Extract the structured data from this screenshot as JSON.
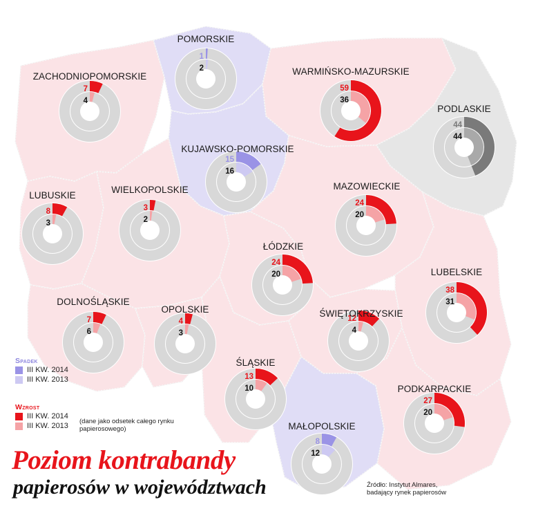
{
  "title": "Poziom kontrabandy",
  "subtitle": "papierosów w województwach",
  "note": "(dane jako odsetek całego rynku papierosowego)",
  "source": [
    "Źródło: Instytut Almares,",
    "badający rynek papierosów"
  ],
  "legend": {
    "decrease": {
      "title": "Spadek",
      "items": [
        {
          "label": "III KW. 2014",
          "color": "#9a93e6"
        },
        {
          "label": "III KW. 2013",
          "color": "#cdc9f2"
        }
      ]
    },
    "increase": {
      "title": "Wzrost",
      "items": [
        {
          "label": "III KW. 2014",
          "color": "#e8141b"
        },
        {
          "label": "III KW. 2013",
          "color": "#f5a3a6"
        }
      ]
    }
  },
  "colors": {
    "increase_2014": "#e8141b",
    "increase_2013": "#f5a3a6",
    "decrease_2014": "#9a93e6",
    "decrease_2013": "#cdc9f2",
    "same_2014": "#7a7a7a",
    "same_2013": "#a9a9a9",
    "ring": "#d8d8d8",
    "region_increase": "#fbe3e6",
    "region_decrease": "#e0ddf6",
    "region_same": "#e6e6e6"
  },
  "chart_data": {
    "type": "donut-map",
    "unit": "%",
    "regions": [
      {
        "name": "POMORSKIE",
        "v2014": 1,
        "v2013": 2,
        "trend": "decrease"
      },
      {
        "name": "ZACHODNIOPOMORSKIE",
        "v2014": 7,
        "v2013": 4,
        "trend": "increase"
      },
      {
        "name": "WARMIŃSKO-MAZURSKIE",
        "v2014": 59,
        "v2013": 36,
        "trend": "increase"
      },
      {
        "name": "PODLASKIE",
        "v2014": 44,
        "v2013": 44,
        "trend": "same"
      },
      {
        "name": "KUJAWSKO-POMORSKIE",
        "v2014": 15,
        "v2013": 16,
        "trend": "decrease"
      },
      {
        "name": "LUBUSKIE",
        "v2014": 8,
        "v2013": 3,
        "trend": "increase"
      },
      {
        "name": "WIELKOPOLSKIE",
        "v2014": 3,
        "v2013": 2,
        "trend": "increase"
      },
      {
        "name": "MAZOWIECKIE",
        "v2014": 24,
        "v2013": 20,
        "trend": "increase"
      },
      {
        "name": "ŁÓDZKIE",
        "v2014": 24,
        "v2013": 20,
        "trend": "increase"
      },
      {
        "name": "LUBELSKIE",
        "v2014": 38,
        "v2013": 31,
        "trend": "increase"
      },
      {
        "name": "DOLNOŚLĄSKIE",
        "v2014": 7,
        "v2013": 6,
        "trend": "increase"
      },
      {
        "name": "OPOLSKIE",
        "v2014": 4,
        "v2013": 3,
        "trend": "increase"
      },
      {
        "name": "ŚWIĘTOKRZYSKIE",
        "v2014": 12,
        "v2013": 4,
        "trend": "increase"
      },
      {
        "name": "ŚLĄSKIE",
        "v2014": 13,
        "v2013": 10,
        "trend": "increase"
      },
      {
        "name": "PODKARPACKIE",
        "v2014": 27,
        "v2013": 20,
        "trend": "increase"
      },
      {
        "name": "MAŁOPOLSKIE",
        "v2014": 8,
        "v2013": 12,
        "trend": "decrease"
      }
    ]
  }
}
